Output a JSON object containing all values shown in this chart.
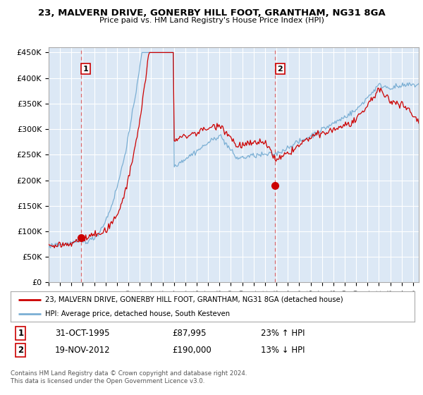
{
  "title1": "23, MALVERN DRIVE, GONERBY HILL FOOT, GRANTHAM, NG31 8GA",
  "title2": "Price paid vs. HM Land Registry's House Price Index (HPI)",
  "ylabel_ticks": [
    "£0",
    "£50K",
    "£100K",
    "£150K",
    "£200K",
    "£250K",
    "£300K",
    "£350K",
    "£400K",
    "£450K"
  ],
  "ytick_values": [
    0,
    50000,
    100000,
    150000,
    200000,
    250000,
    300000,
    350000,
    400000,
    450000
  ],
  "xlim_start": 1993.0,
  "xlim_end": 2025.5,
  "ylim": [
    0,
    460000
  ],
  "legend_line1": "23, MALVERN DRIVE, GONERBY HILL FOOT, GRANTHAM, NG31 8GA (detached house)",
  "legend_line2": "HPI: Average price, detached house, South Kesteven",
  "sale1_date": "31-OCT-1995",
  "sale1_price": 87995,
  "sale1_hpi": "23% ↑ HPI",
  "sale1_x": 1995.83,
  "sale2_date": "19-NOV-2012",
  "sale2_price": 190000,
  "sale2_hpi": "13% ↓ HPI",
  "sale2_x": 2012.88,
  "footer": "Contains HM Land Registry data © Crown copyright and database right 2024.\nThis data is licensed under the Open Government Licence v3.0.",
  "sale_color": "#cc0000",
  "hpi_color": "#7bafd4",
  "vline_color": "#e06060",
  "plot_bg_color": "#dce8f5",
  "background_color": "#ffffff",
  "grid_color": "#ffffff",
  "num_box_color": "#cc0000",
  "seed": 42,
  "n_points": 390,
  "start_year": 1993.0,
  "end_year": 2025.5
}
